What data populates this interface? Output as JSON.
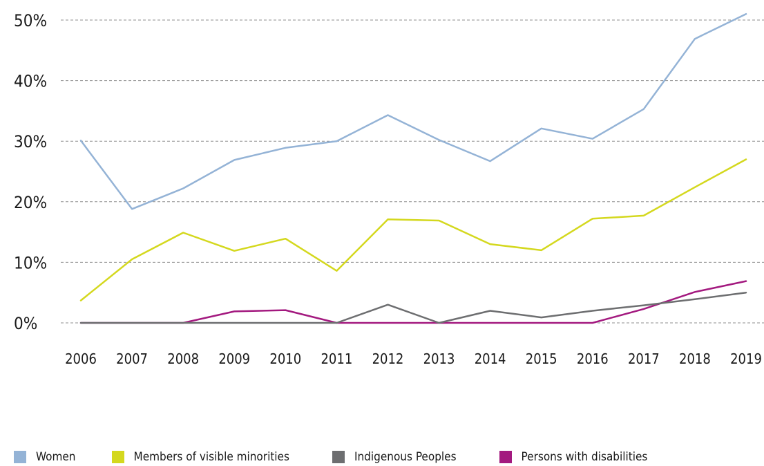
{
  "chart_data": {
    "type": "line",
    "title": "",
    "xlabel": "",
    "ylabel": "",
    "x": [
      "2006",
      "2007",
      "2008",
      "2009",
      "2010",
      "2011",
      "2012",
      "2013",
      "2014",
      "2015",
      "2016",
      "2017",
      "2018",
      "2019"
    ],
    "ylim": [
      0,
      50
    ],
    "y_ticks": [
      0,
      10,
      20,
      30,
      40,
      50
    ],
    "y_tick_labels": [
      "0%",
      "10%",
      "20%",
      "30%",
      "40%",
      "50%"
    ],
    "grid": true,
    "legend_position": "bottom",
    "series": [
      {
        "name": "Women",
        "color": "#94b3d6",
        "values": [
          30.1,
          18.8,
          22.2,
          26.9,
          28.9,
          30.0,
          34.3,
          30.2,
          26.7,
          32.1,
          30.4,
          35.3,
          46.9,
          51.0
        ]
      },
      {
        "name": "Members of visible minorities",
        "color": "#d4d81e",
        "values": [
          3.7,
          10.5,
          14.9,
          11.9,
          13.9,
          8.6,
          17.1,
          16.9,
          13.0,
          12.0,
          17.2,
          17.7,
          22.4,
          27.0
        ]
      },
      {
        "name": "Indigenous Peoples",
        "color": "#6d6e70",
        "values": [
          0,
          0,
          0,
          0,
          0,
          0,
          3.0,
          0,
          2.0,
          0.9,
          2.0,
          2.9,
          3.9,
          5.0
        ]
      },
      {
        "name": "Persons with disabilities",
        "color": "#a3197f",
        "values": [
          0,
          0,
          0,
          1.9,
          2.1,
          0,
          0,
          0,
          0,
          0,
          0,
          2.3,
          5.1,
          6.9
        ]
      }
    ]
  }
}
